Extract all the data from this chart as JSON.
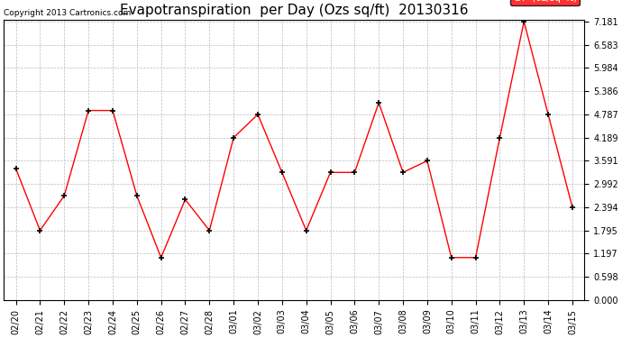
{
  "title": "Evapotranspiration  per Day (Ozs sq/ft)  20130316",
  "copyright": "Copyright 2013 Cartronics.com",
  "dates": [
    "02/20",
    "02/21",
    "02/22",
    "02/23",
    "02/24",
    "02/25",
    "02/26",
    "02/27",
    "02/28",
    "03/01",
    "03/02",
    "03/03",
    "03/04",
    "03/05",
    "03/06",
    "03/07",
    "03/08",
    "03/09",
    "03/10",
    "03/11",
    "03/12",
    "03/13",
    "03/14",
    "03/15"
  ],
  "values": [
    3.391,
    1.795,
    2.693,
    4.888,
    4.888,
    2.693,
    1.097,
    2.594,
    1.795,
    4.189,
    4.787,
    3.292,
    1.795,
    3.292,
    3.292,
    5.087,
    3.292,
    3.591,
    1.097,
    1.097,
    4.189,
    7.181,
    4.787,
    2.394
  ],
  "yticks": [
    0.0,
    0.598,
    1.197,
    1.795,
    2.394,
    2.992,
    3.591,
    4.189,
    4.787,
    5.386,
    5.984,
    6.583,
    7.181
  ],
  "line_color": "red",
  "marker_color": "black",
  "bg_color": "white",
  "grid_color": "#bbbbbb",
  "title_fontsize": 11,
  "copyright_fontsize": 6.5,
  "tick_fontsize": 7,
  "legend_bg": "red",
  "legend_fg": "white",
  "legend_fontsize": 7.5,
  "figwidth": 6.9,
  "figheight": 3.75,
  "dpi": 100
}
